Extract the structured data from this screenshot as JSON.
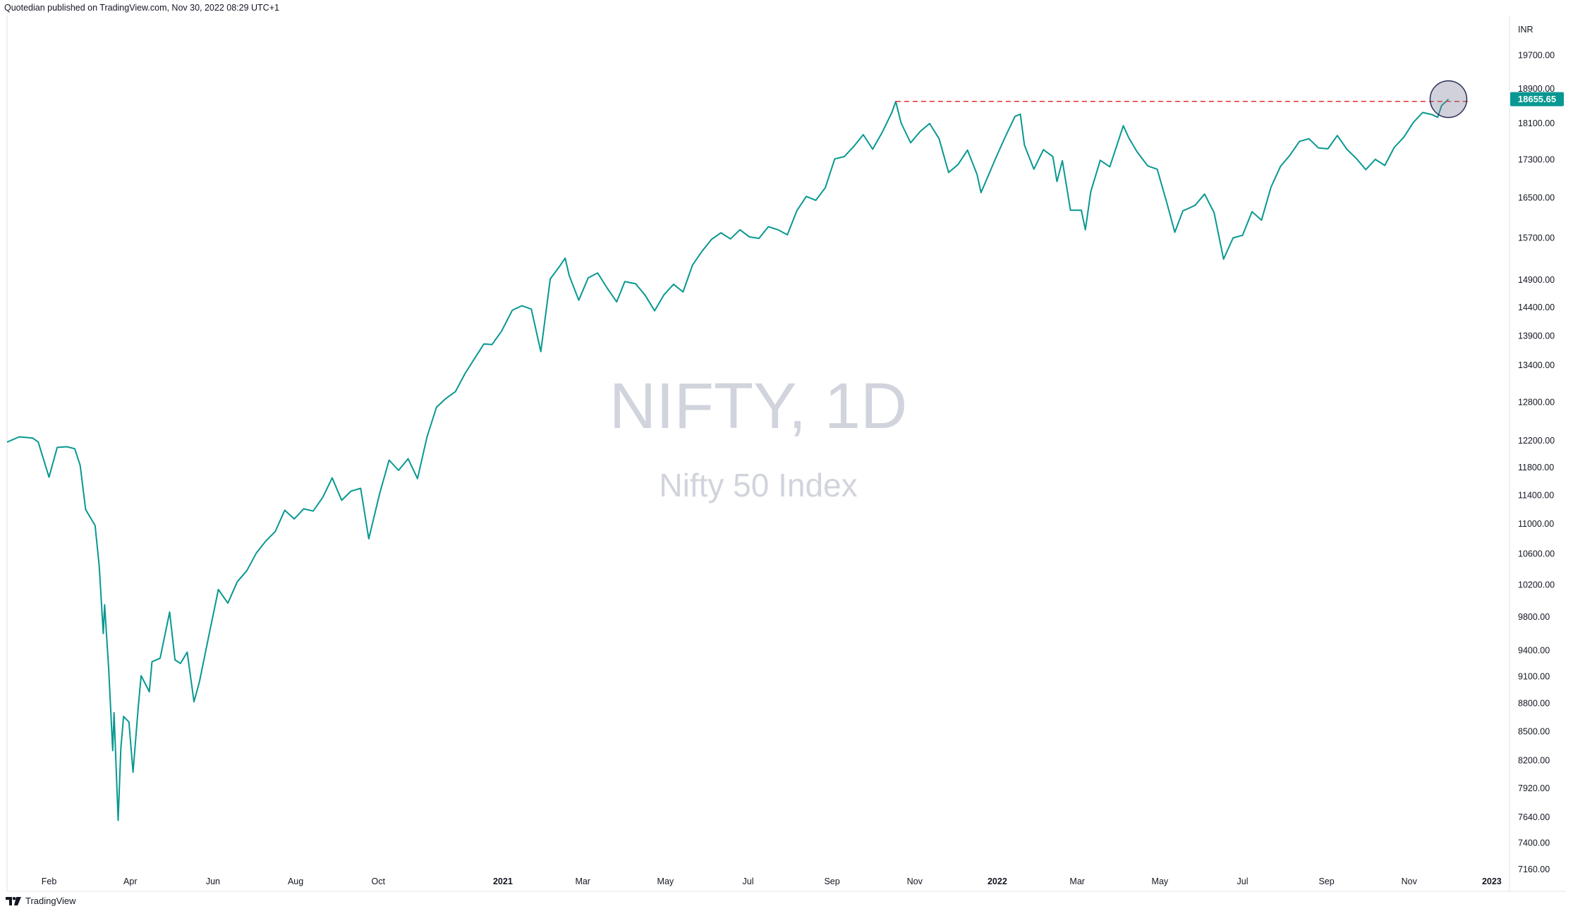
{
  "header": {
    "published_text": "Quotedian published on TradingView.com, Nov 30, 2022 08:29 UTC+1"
  },
  "footer": {
    "brand": "TradingView"
  },
  "watermark": {
    "symbol": "NIFTY, 1D",
    "name": "Nifty 50 Index"
  },
  "chart_data": {
    "type": "line",
    "currency": "INR",
    "last_price_label": "18655.65",
    "resistance_level": 18604,
    "resistance_start": "2021-10-18",
    "highlight_circle": {
      "x": "2022-11-30",
      "y": 18655.65
    },
    "x_range": [
      "2020-01-01",
      "2023-01-12"
    ],
    "y_range": [
      6980,
      20700
    ],
    "y_scale": "log",
    "y_ticks": [
      7160,
      7400,
      7640,
      7920,
      8200,
      8500,
      8800,
      9100,
      9400,
      9800,
      10200,
      10600,
      11000,
      11400,
      11800,
      12200,
      12800,
      13400,
      13900,
      14400,
      14900,
      15700,
      16500,
      17300,
      18100,
      18900,
      19700
    ],
    "x_ticks": [
      {
        "label": "Feb",
        "date": "2020-02-01"
      },
      {
        "label": "Apr",
        "date": "2020-04-01"
      },
      {
        "label": "Jun",
        "date": "2020-06-01"
      },
      {
        "label": "Aug",
        "date": "2020-08-01"
      },
      {
        "label": "Oct",
        "date": "2020-10-01"
      },
      {
        "label": "2021",
        "date": "2021-01-01"
      },
      {
        "label": "Mar",
        "date": "2021-03-01"
      },
      {
        "label": "May",
        "date": "2021-05-01"
      },
      {
        "label": "Jul",
        "date": "2021-07-01"
      },
      {
        "label": "Sep",
        "date": "2021-09-01"
      },
      {
        "label": "Nov",
        "date": "2021-11-01"
      },
      {
        "label": "2022",
        "date": "2022-01-01"
      },
      {
        "label": "Mar",
        "date": "2022-03-01"
      },
      {
        "label": "May",
        "date": "2022-05-01"
      },
      {
        "label": "Jul",
        "date": "2022-07-01"
      },
      {
        "label": "Sep",
        "date": "2022-09-01"
      },
      {
        "label": "Nov",
        "date": "2022-11-01"
      },
      {
        "label": "2023",
        "date": "2023-01-01"
      }
    ],
    "series": [
      {
        "color": "#089891",
        "points": [
          [
            "2020-01-01",
            12180
          ],
          [
            "2020-01-10",
            12260
          ],
          [
            "2020-01-20",
            12240
          ],
          [
            "2020-01-24",
            12180
          ],
          [
            "2020-02-01",
            11660
          ],
          [
            "2020-02-07",
            12100
          ],
          [
            "2020-02-14",
            12110
          ],
          [
            "2020-02-20",
            12080
          ],
          [
            "2020-02-24",
            11830
          ],
          [
            "2020-02-28",
            11200
          ],
          [
            "2020-03-06",
            10980
          ],
          [
            "2020-03-09",
            10450
          ],
          [
            "2020-03-12",
            9600
          ],
          [
            "2020-03-13",
            9950
          ],
          [
            "2020-03-16",
            9200
          ],
          [
            "2020-03-19",
            8300
          ],
          [
            "2020-03-20",
            8700
          ],
          [
            "2020-03-23",
            7610
          ],
          [
            "2020-03-25",
            8320
          ],
          [
            "2020-03-27",
            8660
          ],
          [
            "2020-03-31",
            8600
          ],
          [
            "2020-04-03",
            8080
          ],
          [
            "2020-04-07",
            8790
          ],
          [
            "2020-04-09",
            9110
          ],
          [
            "2020-04-15",
            8930
          ],
          [
            "2020-04-17",
            9270
          ],
          [
            "2020-04-23",
            9310
          ],
          [
            "2020-04-30",
            9860
          ],
          [
            "2020-05-04",
            9290
          ],
          [
            "2020-05-08",
            9250
          ],
          [
            "2020-05-13",
            9380
          ],
          [
            "2020-05-18",
            8820
          ],
          [
            "2020-05-22",
            9040
          ],
          [
            "2020-05-29",
            9580
          ],
          [
            "2020-06-05",
            10140
          ],
          [
            "2020-06-12",
            9970
          ],
          [
            "2020-06-19",
            10240
          ],
          [
            "2020-06-26",
            10380
          ],
          [
            "2020-07-03",
            10610
          ],
          [
            "2020-07-10",
            10770
          ],
          [
            "2020-07-17",
            10900
          ],
          [
            "2020-07-24",
            11190
          ],
          [
            "2020-07-31",
            11070
          ],
          [
            "2020-08-07",
            11210
          ],
          [
            "2020-08-14",
            11180
          ],
          [
            "2020-08-21",
            11370
          ],
          [
            "2020-08-28",
            11650
          ],
          [
            "2020-09-04",
            11330
          ],
          [
            "2020-09-11",
            11460
          ],
          [
            "2020-09-18",
            11500
          ],
          [
            "2020-09-24",
            10800
          ],
          [
            "2020-10-02",
            11420
          ],
          [
            "2020-10-09",
            11910
          ],
          [
            "2020-10-16",
            11760
          ],
          [
            "2020-10-23",
            11930
          ],
          [
            "2020-10-30",
            11640
          ],
          [
            "2020-11-06",
            12260
          ],
          [
            "2020-11-13",
            12720
          ],
          [
            "2020-11-20",
            12860
          ],
          [
            "2020-11-27",
            12970
          ],
          [
            "2020-12-04",
            13260
          ],
          [
            "2020-12-11",
            13510
          ],
          [
            "2020-12-18",
            13760
          ],
          [
            "2020-12-24",
            13750
          ],
          [
            "2020-12-31",
            13980
          ],
          [
            "2021-01-08",
            14350
          ],
          [
            "2021-01-15",
            14430
          ],
          [
            "2021-01-22",
            14370
          ],
          [
            "2021-01-29",
            13630
          ],
          [
            "2021-02-05",
            14920
          ],
          [
            "2021-02-12",
            15160
          ],
          [
            "2021-02-16",
            15310
          ],
          [
            "2021-02-19",
            14980
          ],
          [
            "2021-02-26",
            14530
          ],
          [
            "2021-03-05",
            14940
          ],
          [
            "2021-03-12",
            15030
          ],
          [
            "2021-03-19",
            14750
          ],
          [
            "2021-03-26",
            14500
          ],
          [
            "2021-04-01",
            14870
          ],
          [
            "2021-04-09",
            14830
          ],
          [
            "2021-04-16",
            14620
          ],
          [
            "2021-04-23",
            14340
          ],
          [
            "2021-04-30",
            14630
          ],
          [
            "2021-05-07",
            14820
          ],
          [
            "2021-05-14",
            14680
          ],
          [
            "2021-05-21",
            15180
          ],
          [
            "2021-05-28",
            15440
          ],
          [
            "2021-06-04",
            15670
          ],
          [
            "2021-06-11",
            15800
          ],
          [
            "2021-06-18",
            15680
          ],
          [
            "2021-06-25",
            15860
          ],
          [
            "2021-07-02",
            15720
          ],
          [
            "2021-07-09",
            15690
          ],
          [
            "2021-07-16",
            15920
          ],
          [
            "2021-07-23",
            15860
          ],
          [
            "2021-07-30",
            15760
          ],
          [
            "2021-08-06",
            16240
          ],
          [
            "2021-08-13",
            16530
          ],
          [
            "2021-08-20",
            16450
          ],
          [
            "2021-08-27",
            16710
          ],
          [
            "2021-09-03",
            17320
          ],
          [
            "2021-09-10",
            17370
          ],
          [
            "2021-09-17",
            17590
          ],
          [
            "2021-09-24",
            17850
          ],
          [
            "2021-10-01",
            17530
          ],
          [
            "2021-10-08",
            17900
          ],
          [
            "2021-10-15",
            18340
          ],
          [
            "2021-10-18",
            18600
          ],
          [
            "2021-10-22",
            18110
          ],
          [
            "2021-10-29",
            17670
          ],
          [
            "2021-11-05",
            17920
          ],
          [
            "2021-11-12",
            18100
          ],
          [
            "2021-11-19",
            17760
          ],
          [
            "2021-11-26",
            17030
          ],
          [
            "2021-12-03",
            17200
          ],
          [
            "2021-12-10",
            17510
          ],
          [
            "2021-12-17",
            16990
          ],
          [
            "2021-12-20",
            16610
          ],
          [
            "2021-12-31",
            17350
          ],
          [
            "2022-01-07",
            17810
          ],
          [
            "2022-01-14",
            18260
          ],
          [
            "2022-01-18",
            18310
          ],
          [
            "2022-01-21",
            17620
          ],
          [
            "2022-01-28",
            17100
          ],
          [
            "2022-02-04",
            17520
          ],
          [
            "2022-02-11",
            17370
          ],
          [
            "2022-02-14",
            16840
          ],
          [
            "2022-02-18",
            17280
          ],
          [
            "2022-02-24",
            16250
          ],
          [
            "2022-03-04",
            16250
          ],
          [
            "2022-03-07",
            15860
          ],
          [
            "2022-03-11",
            16630
          ],
          [
            "2022-03-18",
            17290
          ],
          [
            "2022-03-25",
            17150
          ],
          [
            "2022-04-04",
            18050
          ],
          [
            "2022-04-08",
            17780
          ],
          [
            "2022-04-14",
            17480
          ],
          [
            "2022-04-22",
            17170
          ],
          [
            "2022-04-29",
            17100
          ],
          [
            "2022-05-06",
            16410
          ],
          [
            "2022-05-12",
            15810
          ],
          [
            "2022-05-18",
            16240
          ],
          [
            "2022-05-20",
            16260
          ],
          [
            "2022-05-27",
            16350
          ],
          [
            "2022-06-03",
            16580
          ],
          [
            "2022-06-10",
            16200
          ],
          [
            "2022-06-17",
            15290
          ],
          [
            "2022-06-24",
            15700
          ],
          [
            "2022-07-01",
            15750
          ],
          [
            "2022-07-08",
            16220
          ],
          [
            "2022-07-15",
            16050
          ],
          [
            "2022-07-22",
            16720
          ],
          [
            "2022-07-29",
            17160
          ],
          [
            "2022-08-05",
            17400
          ],
          [
            "2022-08-12",
            17700
          ],
          [
            "2022-08-19",
            17760
          ],
          [
            "2022-08-26",
            17560
          ],
          [
            "2022-09-02",
            17540
          ],
          [
            "2022-09-09",
            17830
          ],
          [
            "2022-09-16",
            17530
          ],
          [
            "2022-09-23",
            17330
          ],
          [
            "2022-09-30",
            17090
          ],
          [
            "2022-10-07",
            17310
          ],
          [
            "2022-10-14",
            17180
          ],
          [
            "2022-10-21",
            17570
          ],
          [
            "2022-10-28",
            17790
          ],
          [
            "2022-11-04",
            18120
          ],
          [
            "2022-11-11",
            18350
          ],
          [
            "2022-11-18",
            18300
          ],
          [
            "2022-11-22",
            18240
          ],
          [
            "2022-11-25",
            18510
          ],
          [
            "2022-11-29",
            18620
          ],
          [
            "2022-11-30",
            18655.65
          ]
        ]
      }
    ]
  }
}
